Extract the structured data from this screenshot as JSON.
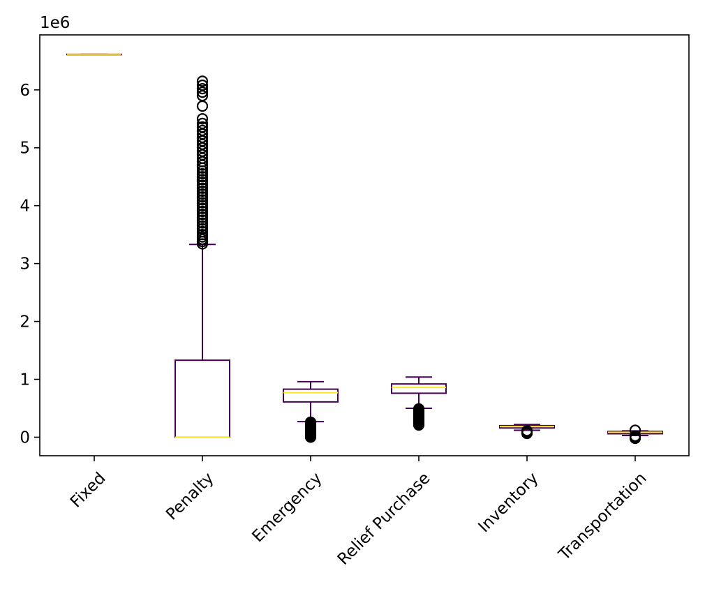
{
  "chart_data": {
    "type": "box",
    "offset_text": "1e6",
    "y_scale_factor": 1000000,
    "ylim": [
      -320000,
      6950000
    ],
    "yticks": [
      {
        "value": 0,
        "label": "0"
      },
      {
        "value": 1000000,
        "label": "1"
      },
      {
        "value": 2000000,
        "label": "2"
      },
      {
        "value": 3000000,
        "label": "3"
      },
      {
        "value": 4000000,
        "label": "4"
      },
      {
        "value": 5000000,
        "label": "5"
      },
      {
        "value": 6000000,
        "label": "6"
      }
    ],
    "categories": [
      "Fixed",
      "Penalty",
      "Emergency",
      "Relief Purchase",
      "Inventory",
      "Transportation"
    ],
    "colors": {
      "box": "#440154",
      "median": "#fde725",
      "flier": "#000000",
      "axis": "#000000",
      "background": "#ffffff"
    },
    "boxes": [
      {
        "name": "Fixed",
        "whislo": 6615000,
        "q1": 6615000,
        "med": 6615000,
        "q3": 6615000,
        "whishi": 6615000,
        "fliers": []
      },
      {
        "name": "Penalty",
        "whislo": 0,
        "q1": 0,
        "med": 0,
        "q3": 1330000,
        "whishi": 3330000,
        "fliers": [
          3340000,
          3380000,
          3420000,
          3460000,
          3500000,
          3550000,
          3600000,
          3650000,
          3700000,
          3750000,
          3800000,
          3850000,
          3900000,
          3950000,
          4000000,
          4050000,
          4100000,
          4150000,
          4200000,
          4250000,
          4300000,
          4350000,
          4400000,
          4450000,
          4500000,
          4550000,
          4600000,
          4650000,
          4700000,
          4760000,
          4820000,
          4880000,
          4940000,
          5000000,
          5060000,
          5120000,
          5180000,
          5240000,
          5300000,
          5360000,
          5420000,
          5500000,
          5720000,
          5900000,
          5960000,
          6020000,
          6080000,
          6150000
        ]
      },
      {
        "name": "Emergency",
        "whislo": 270000,
        "q1": 610000,
        "med": 770000,
        "q3": 830000,
        "whishi": 960000,
        "fliers": [
          260000,
          240000,
          220000,
          200000,
          180000,
          160000,
          140000,
          120000,
          100000,
          80000,
          60000,
          40000,
          20000,
          0
        ]
      },
      {
        "name": "Relief Purchase",
        "whislo": 500000,
        "q1": 760000,
        "med": 860000,
        "q3": 920000,
        "whishi": 1040000,
        "fliers": [
          490000,
          470000,
          450000,
          430000,
          410000,
          390000,
          370000,
          350000,
          330000,
          310000,
          290000,
          270000,
          250000,
          230000,
          210000
        ]
      },
      {
        "name": "Inventory",
        "whislo": 120000,
        "q1": 160000,
        "med": 185000,
        "q3": 200000,
        "whishi": 220000,
        "fliers": [
          110000,
          95000,
          80000,
          65000
        ]
      },
      {
        "name": "Transportation",
        "whislo": 30000,
        "q1": 60000,
        "med": 85000,
        "q3": 100000,
        "whishi": 110000,
        "fliers": [
          20000,
          5000,
          -10000,
          -20000,
          120000
        ]
      }
    ]
  }
}
